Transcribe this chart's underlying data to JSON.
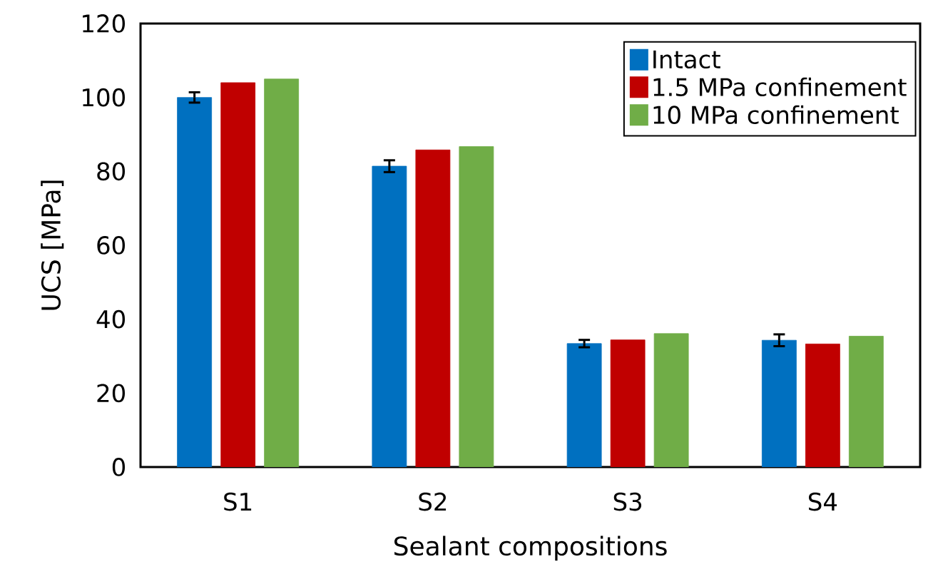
{
  "chart_data": {
    "type": "bar",
    "xlabel": "Sealant compositions",
    "ylabel": "UCS [MPa]",
    "categories": [
      "S1",
      "S2",
      "S3",
      "S4"
    ],
    "series": [
      {
        "name": "Intact",
        "color": "#0070c0",
        "values": [
          100.0,
          81.4,
          33.4,
          34.3
        ],
        "errors": [
          1.4,
          1.6,
          1.0,
          1.6
        ]
      },
      {
        "name": "1.5 MPa confinement",
        "color": "#c00000",
        "values": [
          104.0,
          85.8,
          34.4,
          33.3
        ]
      },
      {
        "name": "10 MPa confinement",
        "color": "#70ad47",
        "values": [
          105.0,
          86.7,
          36.1,
          35.4
        ]
      }
    ],
    "ylim": [
      0,
      120
    ],
    "yticks": [
      0,
      20,
      40,
      60,
      80,
      100,
      120
    ],
    "legend": "top right"
  }
}
